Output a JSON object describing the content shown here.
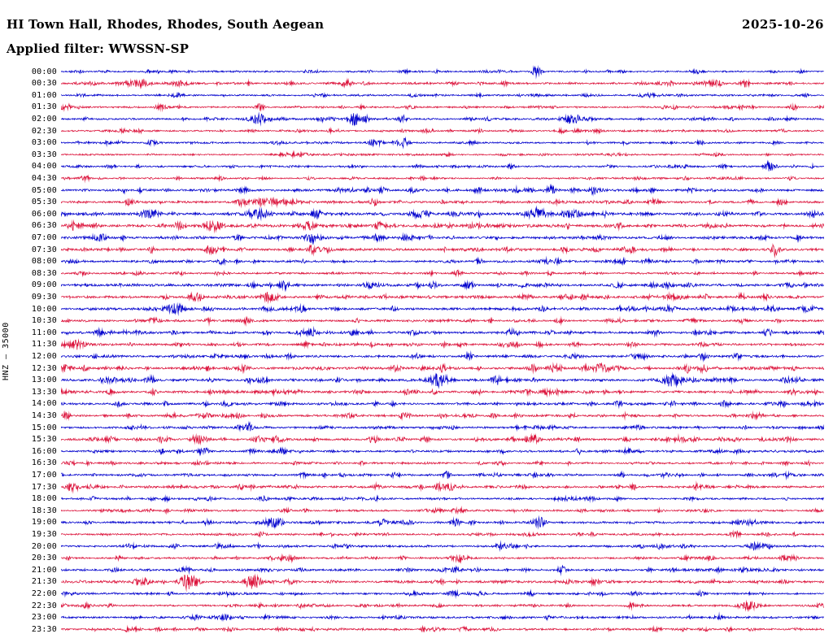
{
  "header": {
    "station_title": "HI Town Hall, Rhodes, Rhodes, South Aegean",
    "date": "2025-10-26",
    "filter_label": "Applied filter: WWSSN-SP"
  },
  "y_axis_label": "HNZ – 35000",
  "chart_data": {
    "type": "line",
    "subtype": "helicorder-dayplot",
    "title": "HI Town Hall, Rhodes, Rhodes, South Aegean",
    "date": "2025-10-26",
    "channel": "HNZ",
    "scale": 35000,
    "filter": "WWSSN-SP",
    "minutes_per_row": 30,
    "legend": "alternating blue/red traces, one row per 30 minutes, 00:00 to 23:30",
    "trace_colors": {
      "blue": "#0000cd",
      "red": "#dc143c"
    },
    "rows": [
      {
        "time": "00:00",
        "color": "blue",
        "noise": 0.8,
        "events": [
          [
            0.623,
            6,
            6
          ],
          [
            0.97,
            2,
            4
          ]
        ]
      },
      {
        "time": "00:30",
        "color": "red",
        "noise": 1.0,
        "events": [
          [
            0.1,
            3,
            18
          ],
          [
            0.155,
            3,
            10
          ],
          [
            0.373,
            4,
            6
          ],
          [
            0.858,
            5,
            8
          ],
          [
            0.896,
            4,
            6
          ]
        ]
      },
      {
        "time": "01:00",
        "color": "blue",
        "noise": 0.9,
        "events": [
          [
            0.773,
            2.5,
            5
          ]
        ]
      },
      {
        "time": "01:30",
        "color": "red",
        "noise": 0.9,
        "events": [
          [
            0.261,
            3,
            5
          ],
          [
            0.959,
            2.5,
            5
          ]
        ]
      },
      {
        "time": "02:00",
        "color": "blue",
        "noise": 1.0,
        "events": [
          [
            0.261,
            5,
            14
          ],
          [
            0.384,
            6,
            7
          ],
          [
            0.448,
            4,
            6
          ],
          [
            0.666,
            4,
            10
          ]
        ]
      },
      {
        "time": "02:30",
        "color": "red",
        "noise": 0.9,
        "events": [
          [
            0.549,
            2,
            4
          ]
        ]
      },
      {
        "time": "03:00",
        "color": "blue",
        "noise": 0.9,
        "events": [
          [
            0.41,
            4,
            7
          ],
          [
            0.45,
            4,
            6
          ]
        ]
      },
      {
        "time": "03:30",
        "color": "red",
        "noise": 0.8,
        "events": []
      },
      {
        "time": "04:00",
        "color": "blue",
        "noise": 0.9,
        "events": [
          [
            0.927,
            6,
            5
          ]
        ]
      },
      {
        "time": "04:30",
        "color": "red",
        "noise": 0.8,
        "events": [
          [
            0.032,
            2.5,
            5
          ]
        ]
      },
      {
        "time": "05:00",
        "color": "blue",
        "noise": 1.2,
        "events": [
          [
            0.421,
            3,
            6
          ],
          [
            0.698,
            3,
            6
          ]
        ]
      },
      {
        "time": "05:30",
        "color": "red",
        "noise": 1.2,
        "events": [
          [
            0.27,
            4,
            20
          ],
          [
            0.41,
            4,
            6
          ],
          [
            0.943,
            3,
            6
          ]
        ]
      },
      {
        "time": "06:00",
        "color": "blue",
        "noise": 1.4,
        "events": [
          [
            0.117,
            4,
            8
          ],
          [
            0.261,
            5,
            12
          ],
          [
            0.336,
            4,
            8
          ],
          [
            0.474,
            4,
            8
          ],
          [
            0.623,
            5,
            14
          ],
          [
            0.677,
            4,
            8
          ],
          [
            0.986,
            4,
            6
          ]
        ]
      },
      {
        "time": "06:30",
        "color": "red",
        "noise": 1.4,
        "events": [
          [
            0.016,
            4,
            8
          ],
          [
            0.197,
            5,
            12
          ],
          [
            0.325,
            4,
            8
          ]
        ]
      },
      {
        "time": "07:00",
        "color": "blue",
        "noise": 1.3,
        "events": [
          [
            0.053,
            4,
            6
          ],
          [
            0.33,
            6,
            9
          ]
        ]
      },
      {
        "time": "07:30",
        "color": "red",
        "noise": 1.3,
        "events": [
          [
            0.33,
            6,
            6
          ]
        ]
      },
      {
        "time": "08:00",
        "color": "blue",
        "noise": 1.1,
        "events": []
      },
      {
        "time": "08:30",
        "color": "red",
        "noise": 1.0,
        "events": []
      },
      {
        "time": "09:00",
        "color": "blue",
        "noise": 1.2,
        "events": [
          [
            0.293,
            4,
            6
          ],
          [
            0.794,
            3,
            6
          ]
        ]
      },
      {
        "time": "09:30",
        "color": "red",
        "noise": 1.3,
        "events": [
          [
            0.176,
            4,
            8
          ],
          [
            0.272,
            5,
            10
          ]
        ]
      },
      {
        "time": "10:00",
        "color": "blue",
        "noise": 1.3,
        "events": [
          [
            0.149,
            6,
            12
          ]
        ]
      },
      {
        "time": "10:30",
        "color": "red",
        "noise": 1.1,
        "events": []
      },
      {
        "time": "11:00",
        "color": "blue",
        "noise": 1.2,
        "events": [
          [
            0.33,
            4,
            6
          ]
        ]
      },
      {
        "time": "11:30",
        "color": "red",
        "noise": 1.1,
        "events": [
          [
            0.016,
            4,
            14
          ]
        ]
      },
      {
        "time": "12:00",
        "color": "blue",
        "noise": 1.2,
        "events": [
          [
            0.842,
            3,
            6
          ]
        ]
      },
      {
        "time": "12:30",
        "color": "red",
        "noise": 1.3,
        "events": [
          [
            0.501,
            4,
            6
          ],
          [
            0.618,
            4,
            6
          ],
          [
            0.709,
            5,
            8
          ],
          [
            0.842,
            4,
            6
          ]
        ]
      },
      {
        "time": "13:00",
        "color": "blue",
        "noise": 1.3,
        "events": [
          [
            0.117,
            4,
            6
          ],
          [
            0.496,
            7,
            12
          ],
          [
            0.57,
            5,
            6
          ],
          [
            0.8,
            7,
            12
          ]
        ]
      },
      {
        "time": "13:30",
        "color": "red",
        "noise": 1.2,
        "events": [
          [
            0.959,
            3,
            5
          ]
        ]
      },
      {
        "time": "14:00",
        "color": "blue",
        "noise": 1.2,
        "events": []
      },
      {
        "time": "14:30",
        "color": "red",
        "noise": 1.1,
        "events": [
          [
            0.453,
            3,
            5
          ]
        ]
      },
      {
        "time": "15:00",
        "color": "blue",
        "noise": 1.1,
        "events": [
          [
            0.245,
            4,
            6
          ]
        ]
      },
      {
        "time": "15:30",
        "color": "red",
        "noise": 1.2,
        "events": [
          [
            0.176,
            4,
            6
          ],
          [
            0.41,
            4,
            6
          ],
          [
            0.618,
            5,
            8
          ],
          [
            0.741,
            3,
            5
          ]
        ]
      },
      {
        "time": "16:00",
        "color": "blue",
        "noise": 1.1,
        "events": [
          [
            0.187,
            4,
            6
          ]
        ]
      },
      {
        "time": "16:30",
        "color": "red",
        "noise": 1.0,
        "events": []
      },
      {
        "time": "17:00",
        "color": "blue",
        "noise": 1.0,
        "events": [
          [
            0.506,
            5,
            5
          ]
        ]
      },
      {
        "time": "17:30",
        "color": "red",
        "noise": 1.1,
        "events": [
          [
            0.016,
            5,
            8
          ],
          [
            0.512,
            4,
            5
          ]
        ]
      },
      {
        "time": "18:00",
        "color": "blue",
        "noise": 1.0,
        "events": []
      },
      {
        "time": "18:30",
        "color": "red",
        "noise": 0.9,
        "events": [
          [
            0.522,
            3,
            5
          ]
        ]
      },
      {
        "time": "19:00",
        "color": "blue",
        "noise": 1.1,
        "events": [
          [
            0.192,
            3,
            5
          ],
          [
            0.277,
            5,
            10
          ],
          [
            0.421,
            4,
            6
          ],
          [
            0.517,
            4,
            6
          ],
          [
            0.629,
            4,
            7
          ],
          [
            0.906,
            3,
            5
          ]
        ]
      },
      {
        "time": "19:30",
        "color": "red",
        "noise": 1.0,
        "events": []
      },
      {
        "time": "20:00",
        "color": "blue",
        "noise": 1.1,
        "events": [
          [
            0.576,
            4,
            6
          ],
          [
            0.784,
            3,
            8
          ],
          [
            0.911,
            4,
            10
          ]
        ]
      },
      {
        "time": "20:30",
        "color": "red",
        "noise": 1.0,
        "events": [
          [
            0.522,
            5,
            5
          ]
        ]
      },
      {
        "time": "21:00",
        "color": "blue",
        "noise": 1.1,
        "events": [
          [
            0.165,
            3,
            5
          ],
          [
            0.517,
            4,
            5
          ],
          [
            0.656,
            4,
            6
          ]
        ]
      },
      {
        "time": "21:30",
        "color": "red",
        "noise": 1.2,
        "events": [
          [
            0.167,
            9,
            10
          ],
          [
            0.251,
            4,
            6
          ]
        ]
      },
      {
        "time": "22:00",
        "color": "blue",
        "noise": 1.0,
        "events": [
          [
            0.512,
            4,
            5
          ]
        ]
      },
      {
        "time": "22:30",
        "color": "red",
        "noise": 1.0,
        "events": [
          [
            0.901,
            5,
            12
          ]
        ]
      },
      {
        "time": "23:00",
        "color": "blue",
        "noise": 1.1,
        "events": []
      },
      {
        "time": "23:30",
        "color": "red",
        "noise": 0.9,
        "events": [
          [
            0.474,
            2.5,
            4
          ]
        ]
      }
    ]
  }
}
